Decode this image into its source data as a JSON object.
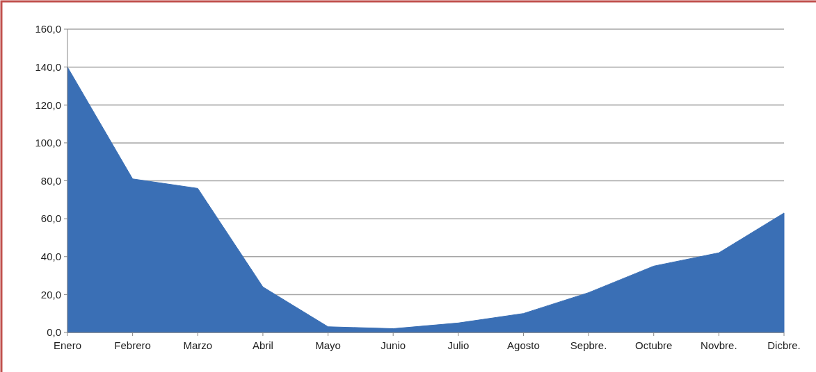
{
  "chart_data": {
    "type": "area",
    "categories": [
      "Enero",
      "Febrero",
      "Marzo",
      "Abril",
      "Mayo",
      "Junio",
      "Julio",
      "Agosto",
      "Sepbre.",
      "Octubre",
      "Novbre.",
      "Dicbre."
    ],
    "series": [
      {
        "color": "#3a6fb5",
        "values": [
          140,
          81,
          76,
          24,
          3,
          2,
          5,
          10,
          21,
          35,
          42,
          63
        ]
      }
    ],
    "ylim": [
      0,
      160
    ],
    "yticks": [
      {
        "value": 0,
        "label": "0,0"
      },
      {
        "value": 20,
        "label": "20,0"
      },
      {
        "value": 40,
        "label": "40,0"
      },
      {
        "value": 60,
        "label": "60,0"
      },
      {
        "value": 80,
        "label": "80,0"
      },
      {
        "value": 100,
        "label": "100,0"
      },
      {
        "value": 120,
        "label": "120,0"
      },
      {
        "value": 140,
        "label": "140,0"
      },
      {
        "value": 160,
        "label": "160,0"
      }
    ],
    "grid": "y"
  }
}
